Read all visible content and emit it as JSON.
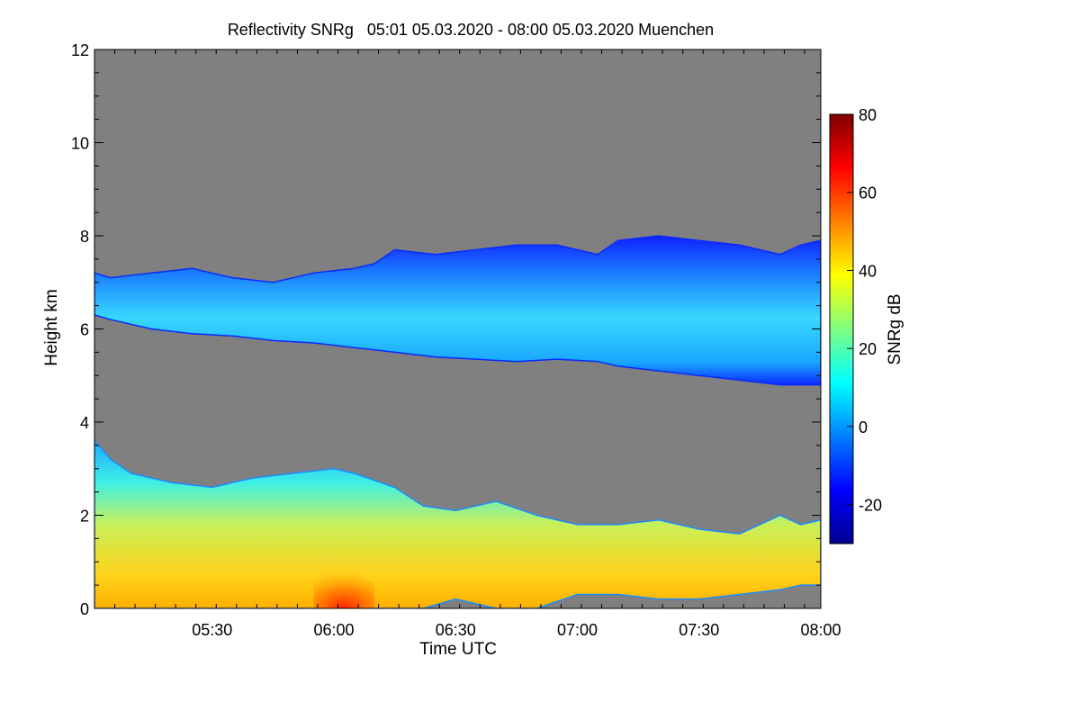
{
  "chart_data": {
    "type": "heatmap",
    "title": "Reflectivity SNRg   05:01 05.03.2020 - 08:00 05.03.2020 Muenchen",
    "xlabel": "Time UTC",
    "ylabel": "Height km",
    "x_range": [
      "05:01",
      "08:00"
    ],
    "xlim_minutes": [
      301,
      480
    ],
    "x_ticks": [
      {
        "label": "05:30",
        "minutes": 330
      },
      {
        "label": "06:00",
        "minutes": 360
      },
      {
        "label": "06:30",
        "minutes": 390
      },
      {
        "label": "07:00",
        "minutes": 420
      },
      {
        "label": "07:30",
        "minutes": 450
      },
      {
        "label": "08:00",
        "minutes": 480
      }
    ],
    "ylim": [
      0,
      12
    ],
    "y_ticks": [
      {
        "label": "0",
        "value": 0
      },
      {
        "label": "2",
        "value": 2
      },
      {
        "label": "4",
        "value": 4
      },
      {
        "label": "6",
        "value": 6
      },
      {
        "label": "8",
        "value": 8
      },
      {
        "label": "10",
        "value": 10
      },
      {
        "label": "12",
        "value": 12
      }
    ],
    "colorbar": {
      "label": "SNRg dB",
      "range": [
        -30,
        80
      ],
      "ticks": [
        {
          "label": "-20",
          "value": -20
        },
        {
          "label": "0",
          "value": 0
        },
        {
          "label": "20",
          "value": 20
        },
        {
          "label": "40",
          "value": 40
        },
        {
          "label": "60",
          "value": 60
        },
        {
          "label": "80",
          "value": 80
        }
      ],
      "colors": [
        "#00008f",
        "#0000ff",
        "#0080ff",
        "#00ffff",
        "#80ff80",
        "#ffff00",
        "#ff8000",
        "#ff0000",
        "#800000"
      ]
    },
    "background_color": "#808080",
    "layers": [
      {
        "name": "upper cloud layer (6-8 km)",
        "value_typical_db": 5,
        "value_range_db": [
          -20,
          15
        ],
        "time_minutes": [
          301,
          305,
          315,
          325,
          335,
          345,
          355,
          365,
          370,
          375,
          385,
          395,
          405,
          415,
          425,
          430,
          440,
          450,
          460,
          470,
          475,
          480
        ],
        "top_km": [
          7.2,
          7.1,
          7.2,
          7.3,
          7.1,
          7.0,
          7.2,
          7.3,
          7.4,
          7.7,
          7.6,
          7.7,
          7.8,
          7.8,
          7.6,
          7.9,
          8.0,
          7.9,
          7.8,
          7.6,
          7.8,
          7.9
        ],
        "base_km": [
          6.3,
          6.2,
          6.0,
          5.9,
          5.85,
          5.75,
          5.7,
          5.6,
          5.55,
          5.5,
          5.4,
          5.35,
          5.3,
          5.35,
          5.3,
          5.2,
          5.1,
          5.0,
          4.9,
          4.8,
          4.8,
          4.8
        ]
      },
      {
        "name": "lower precipitation layer (0-3.5 km)",
        "value_typical_db": 25,
        "value_range_db": [
          -20,
          60
        ],
        "time_minutes": [
          301,
          305,
          310,
          320,
          330,
          340,
          350,
          360,
          365,
          375,
          382,
          390,
          400,
          410,
          420,
          430,
          440,
          450,
          460,
          470,
          475,
          480
        ],
        "top_km": [
          3.6,
          3.2,
          2.9,
          2.7,
          2.6,
          2.8,
          2.9,
          3.0,
          2.9,
          2.6,
          2.2,
          2.1,
          2.3,
          2.0,
          1.8,
          1.8,
          1.9,
          1.7,
          1.6,
          2.0,
          1.8,
          1.9
        ],
        "base_km": [
          0.0,
          0.0,
          0.0,
          0.0,
          0.0,
          0.0,
          0.0,
          0.0,
          0.0,
          0.0,
          0.0,
          0.2,
          0.0,
          0.0,
          0.3,
          0.3,
          0.2,
          0.2,
          0.3,
          0.4,
          0.5,
          0.5
        ]
      },
      {
        "name": "peak reflectivity core",
        "value_typical_db": 55,
        "time_minutes": [
          355,
          360,
          365,
          370
        ],
        "top_km": [
          0.6,
          0.9,
          0.8,
          0.5
        ],
        "base_km": [
          0.0,
          0.0,
          0.0,
          0.0
        ]
      }
    ]
  }
}
